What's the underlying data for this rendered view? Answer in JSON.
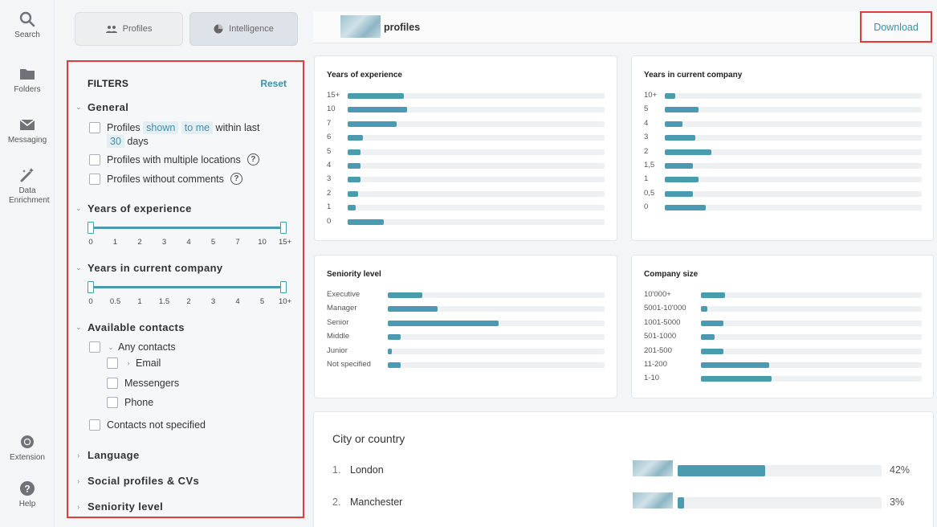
{
  "rail": [
    {
      "label": "Search",
      "icon": "search-icon"
    },
    {
      "label": "Folders",
      "icon": "folder-icon"
    },
    {
      "label": "Messaging",
      "icon": "envelope-icon"
    },
    {
      "label": "Data Enrichment",
      "icon": "magic-wand-icon"
    },
    {
      "label": "Extension",
      "icon": "chrome-icon"
    },
    {
      "label": "Help",
      "icon": "help-icon"
    }
  ],
  "tabs": {
    "profiles": "Profiles",
    "intelligence": "Intelligence"
  },
  "filters": {
    "title": "FILTERS",
    "reset": "Reset",
    "general": {
      "label": "General",
      "opt1_a": "Profiles",
      "opt1_chip1": "shown",
      "opt1_chip2": "to me",
      "opt1_b": "within last",
      "opt1_chip3": "30",
      "opt1_c": "days",
      "opt2": "Profiles with multiple locations",
      "opt3": "Profiles without comments"
    },
    "years_experience": {
      "label": "Years of experience",
      "ticks": [
        "0",
        "1",
        "2",
        "3",
        "4",
        "5",
        "7",
        "10",
        "15+"
      ]
    },
    "years_company": {
      "label": "Years in current company",
      "ticks": [
        "0",
        "0.5",
        "1",
        "1.5",
        "2",
        "3",
        "4",
        "5",
        "10+"
      ]
    },
    "contacts": {
      "label": "Available contacts",
      "any": "Any contacts",
      "email": "Email",
      "messengers": "Messengers",
      "phone": "Phone",
      "not_specified": "Contacts not specified"
    },
    "language": "Language",
    "social": "Social profiles & CVs",
    "seniority": "Seniority level"
  },
  "header": {
    "title": "profiles",
    "download": "Download"
  },
  "cards": {
    "experience": {
      "title": "Years of experience",
      "rows": [
        {
          "label": "15+",
          "value": 0.22
        },
        {
          "label": "10",
          "value": 0.23
        },
        {
          "label": "7",
          "value": 0.19
        },
        {
          "label": "6",
          "value": 0.06
        },
        {
          "label": "5",
          "value": 0.05
        },
        {
          "label": "4",
          "value": 0.05
        },
        {
          "label": "3",
          "value": 0.05
        },
        {
          "label": "2",
          "value": 0.04
        },
        {
          "label": "1",
          "value": 0.03
        },
        {
          "label": "0",
          "value": 0.14
        }
      ]
    },
    "company": {
      "title": "Years in current company",
      "rows": [
        {
          "label": "10+",
          "value": 0.04
        },
        {
          "label": "5",
          "value": 0.13
        },
        {
          "label": "4",
          "value": 0.07
        },
        {
          "label": "3",
          "value": 0.12
        },
        {
          "label": "2",
          "value": 0.18
        },
        {
          "label": "1,5",
          "value": 0.11
        },
        {
          "label": "1",
          "value": 0.13
        },
        {
          "label": "0,5",
          "value": 0.11
        },
        {
          "label": "0",
          "value": 0.16
        }
      ]
    },
    "seniority": {
      "title": "Seniority level",
      "rows": [
        {
          "label": "Executive",
          "value": 0.16
        },
        {
          "label": "Manager",
          "value": 0.23
        },
        {
          "label": "Senior",
          "value": 0.51
        },
        {
          "label": "Middle",
          "value": 0.06
        },
        {
          "label": "Junior",
          "value": 0.02
        },
        {
          "label": "Not specified",
          "value": 0.06
        }
      ]
    },
    "size": {
      "title": "Company size",
      "rows": [
        {
          "label": "10'000+",
          "value": 0.11
        },
        {
          "label": "5001-10'000",
          "value": 0.03
        },
        {
          "label": "1001-5000",
          "value": 0.1
        },
        {
          "label": "501-1000",
          "value": 0.06
        },
        {
          "label": "201-500",
          "value": 0.1
        },
        {
          "label": "11-200",
          "value": 0.31
        },
        {
          "label": "1-10",
          "value": 0.32
        }
      ]
    }
  },
  "city": {
    "title": "City or country",
    "rows": [
      {
        "n": "1.",
        "name": "London",
        "pct": "42%",
        "value": 0.42
      },
      {
        "n": "2.",
        "name": "Manchester",
        "pct": "3%",
        "value": 0.03
      }
    ]
  }
}
